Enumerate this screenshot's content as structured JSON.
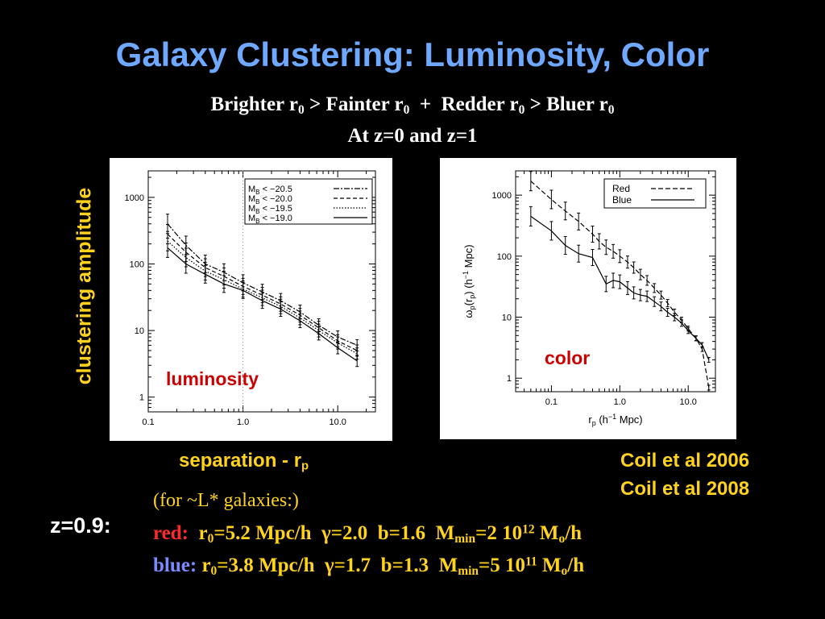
{
  "slide": {
    "title": "Galaxy Clustering: Luminosity, Color",
    "subtitle_line1": {
      "a": "Brighter r",
      "sub1": "0",
      "b": " > Fainter r",
      "sub2": "0",
      "c": "  +  Redder r",
      "sub3": "0",
      "d": " > Bluer r",
      "sub4": "0"
    },
    "subtitle_line2": "At z=0 and z=1",
    "y_axis_caption": "clustering amplitude",
    "x_axis_caption": {
      "text": "separation - r",
      "sub": "p"
    },
    "references": [
      "Coil et al 2006",
      "Coil et al 2008"
    ],
    "note": "(for ~L* galaxies:)",
    "redshift_label": "z=0.9:",
    "red_params": {
      "label": "red:",
      "r": "  r",
      "r_sub": "0",
      "r_val": "=5.2 Mpc/h  γ=2.0  b=1.6  M",
      "m_sub": "min",
      "m_val": "=2 10",
      "exp": "12",
      "m_unit": " M",
      "o_sub": "o",
      "tail": "/h"
    },
    "blue_params": {
      "label": "blue:",
      "r": " r",
      "r_sub": "0",
      "r_val": "=3.8 Mpc/h  γ=1.7  b=1.3  M",
      "m_sub": "min",
      "m_val": "=5 10",
      "exp": "11",
      "m_unit": " M",
      "o_sub": "o",
      "tail": "/h"
    },
    "colors": {
      "title": "#6fa8ff",
      "caption": "#ffd21e",
      "label": "#cc0000",
      "red_word": "#ff2a2a",
      "blue_word": "#7a8cff"
    }
  },
  "chart_data": [
    {
      "type": "line",
      "panel_label": "luminosity",
      "xscale": "log",
      "yscale": "log",
      "xlim": [
        0.1,
        25
      ],
      "ylim": [
        0.6,
        2500
      ],
      "xticks": [
        0.1,
        1.0,
        10.0
      ],
      "xtick_labels": [
        "0.1",
        "1.0",
        "10.0"
      ],
      "yticks": [
        1,
        10,
        100,
        1000
      ],
      "ytick_labels": [
        "1",
        "10",
        "100",
        "1000"
      ],
      "legend": "top-right",
      "x_dotted_line": 1.0,
      "series": [
        {
          "name": "M_B < −20.5",
          "legend_prefix": "M",
          "legend_sub": "B",
          "legend_text": " <  −20.5",
          "dash": "7,2,2,2",
          "x": [
            0.16,
            0.25,
            0.4,
            0.63,
            1.0,
            1.6,
            2.5,
            4.0,
            6.3,
            10,
            16
          ],
          "y": [
            400,
            190,
            100,
            75,
            52,
            38,
            28,
            19,
            12,
            8,
            6
          ]
        },
        {
          "name": "M_B < −20.0",
          "legend_prefix": "M",
          "legend_sub": "B",
          "legend_text": " <  −20.0",
          "dash": "5,3",
          "x": [
            0.16,
            0.25,
            0.4,
            0.63,
            1.0,
            1.6,
            2.5,
            4.0,
            6.3,
            10,
            16
          ],
          "y": [
            280,
            150,
            88,
            65,
            46,
            34,
            25,
            17,
            11,
            7,
            5
          ]
        },
        {
          "name": "M_B < −19.5",
          "legend_prefix": "M",
          "legend_sub": "B",
          "legend_text": " <  −19.5",
          "dash": "1.5,2",
          "x": [
            0.16,
            0.25,
            0.4,
            0.63,
            1.0,
            1.6,
            2.5,
            4.0,
            6.3,
            10,
            16
          ],
          "y": [
            220,
            125,
            78,
            58,
            42,
            31,
            23,
            15.5,
            10,
            6.5,
            4.5
          ]
        },
        {
          "name": "M_B < −19.0",
          "legend_prefix": "M",
          "legend_sub": "B",
          "legend_text": " <  −19.0",
          "dash": "",
          "x": [
            0.16,
            0.25,
            0.4,
            0.63,
            1.0,
            1.6,
            2.5,
            4.0,
            6.3,
            10,
            16
          ],
          "y": [
            175,
            100,
            70,
            50,
            40,
            28,
            21,
            14,
            9,
            5.5,
            3.5
          ]
        }
      ]
    },
    {
      "type": "line",
      "panel_label": "color",
      "ylabel": {
        "omega": "ω",
        "p": "p",
        "args": "(r",
        "args_sub": "p",
        "rest": ")  (h",
        "exp": "−1",
        "unit": " Mpc)"
      },
      "xlabel": {
        "r": "r",
        "r_sub": "p",
        "rest": "  (h",
        "exp": "−1",
        "unit": " Mpc)"
      },
      "xscale": "log",
      "yscale": "log",
      "xlim": [
        0.03,
        25
      ],
      "ylim": [
        0.6,
        2500
      ],
      "xticks": [
        0.1,
        1.0,
        10.0
      ],
      "xtick_labels": [
        "0.1",
        "1.0",
        "10.0"
      ],
      "yticks": [
        1,
        10,
        100,
        1000
      ],
      "ytick_labels": [
        "1",
        "10",
        "100",
        "1000"
      ],
      "legend": "top-right",
      "series": [
        {
          "name": "Red",
          "dash": "6,3",
          "x": [
            0.05,
            0.1,
            0.16,
            0.25,
            0.4,
            0.5,
            0.63,
            0.8,
            1.0,
            1.3,
            1.6,
            2.0,
            2.5,
            3.2,
            4.0,
            5.0,
            6.3,
            8,
            10,
            13,
            16,
            20
          ],
          "y": [
            1700,
            850,
            550,
            370,
            230,
            175,
            140,
            120,
            100,
            80,
            65,
            50,
            40,
            30,
            23,
            17,
            12,
            9,
            6.5,
            4.5,
            3,
            0.7
          ]
        },
        {
          "name": "Blue",
          "dash": "",
          "x": [
            0.05,
            0.1,
            0.16,
            0.25,
            0.4,
            0.63,
            0.8,
            1.0,
            1.3,
            1.6,
            2.0,
            2.5,
            3.2,
            4.0,
            5.0,
            6.3,
            8,
            10,
            13,
            16,
            20
          ],
          "y": [
            450,
            260,
            150,
            110,
            95,
            35,
            40,
            38,
            30,
            25,
            23,
            22,
            18,
            15,
            12,
            10,
            8,
            6,
            4.5,
            3.5,
            2
          ]
        }
      ]
    }
  ]
}
